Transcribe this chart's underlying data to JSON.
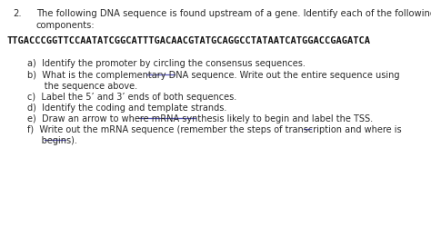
{
  "background_color": "#ffffff",
  "question_number": "2.",
  "question_text_line1": "The following DNA sequence is found upstream of a gene. Identify each of the following",
  "question_text_line2": "components:",
  "dna_sequence": "TTGACCCGGTTCCAATATCGGCATTTGACAACGTATGCAGGCCTATAATCATGGACCGAGATCA",
  "item_a": "a)  Identify the promoter by circling the consensus sequences.",
  "item_b1": "b)  What is the complementary DNA sequence. Write out the entire sequence using",
  "item_b2": "      the sequence above.",
  "item_c": "c)  Label the 5’ and 3’ ends of both sequences.",
  "item_d": "d)  Identify the coding and template strands.",
  "item_e": "e)  Draw an arrow to where mRNA synthesis likely to begin and label the TSS.",
  "item_f1": "f)  Write out the mRNA sequence (remember the steps of transcription and where is",
  "item_f2": "     begins).",
  "font_size_q": 7.2,
  "font_size_dna": 7.5,
  "font_size_items": 7.0,
  "text_color": "#2a2a2a",
  "underline_color": "#5555bb"
}
